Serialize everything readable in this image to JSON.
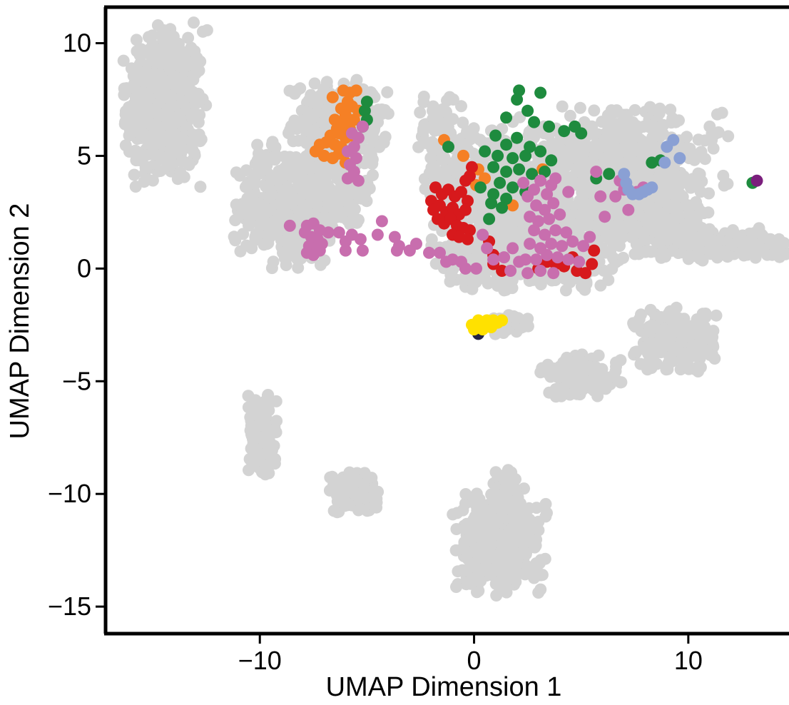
{
  "chart_data": {
    "type": "scatter",
    "title": "",
    "xlabel": "UMAP Dimension 1",
    "ylabel": "UMAP Dimension 2",
    "xlim": [
      -17.2,
      14.7
    ],
    "ylim": [
      -16.2,
      11.6
    ],
    "xticks": [
      {
        "value": -10,
        "label": "−10"
      },
      {
        "value": 0,
        "label": "0"
      },
      {
        "value": 10,
        "label": "10"
      }
    ],
    "yticks": [
      {
        "value": 10,
        "label": "10"
      },
      {
        "value": 5,
        "label": "5"
      },
      {
        "value": 0,
        "label": "0"
      },
      {
        "value": -5,
        "label": "−5"
      },
      {
        "value": -10,
        "label": "−10"
      },
      {
        "value": -15,
        "label": "−15"
      }
    ],
    "grid": false,
    "legend": "none",
    "background_points": {
      "color": "#D3D3D3",
      "clusters": [
        {
          "cx": -14.4,
          "cy": 7.2,
          "sx": 0.9,
          "sy": 1.7,
          "n": 520
        },
        {
          "cx": -6.3,
          "cy": 6.4,
          "sx": 1.1,
          "sy": 0.9,
          "n": 300
        },
        {
          "cx": -8.7,
          "cy": 2.8,
          "sx": 1.2,
          "sy": 1.3,
          "n": 380
        },
        {
          "cx": -6.5,
          "cy": 3.3,
          "sx": 0.9,
          "sy": 1.0,
          "n": 160
        },
        {
          "cx": -1.6,
          "cy": 5.8,
          "sx": 0.6,
          "sy": 1.0,
          "n": 70
        },
        {
          "cx": 1.2,
          "cy": 3.5,
          "sx": 1.6,
          "sy": 1.5,
          "n": 520
        },
        {
          "cx": 3.6,
          "cy": 1.0,
          "sx": 1.5,
          "sy": 0.9,
          "n": 420
        },
        {
          "cx": 6.8,
          "cy": 4.6,
          "sx": 2.3,
          "sy": 1.2,
          "n": 520
        },
        {
          "cx": 8.2,
          "cy": 2.3,
          "sx": 1.4,
          "sy": 0.9,
          "n": 260
        },
        {
          "cx": 11.5,
          "cy": 1.1,
          "sx": 1.6,
          "sy": 0.35,
          "n": 170
        },
        {
          "cx": 0.1,
          "cy": 0.7,
          "sx": 1.0,
          "sy": 0.8,
          "n": 140
        },
        {
          "cx": 9.4,
          "cy": -3.2,
          "sx": 0.9,
          "sy": 0.7,
          "n": 240
        },
        {
          "cx": 5.0,
          "cy": -4.8,
          "sx": 0.9,
          "sy": 0.45,
          "n": 140
        },
        {
          "cx": 1.5,
          "cy": -2.5,
          "sx": 0.5,
          "sy": 0.2,
          "n": 50
        },
        {
          "cx": -9.9,
          "cy": -7.4,
          "sx": 0.35,
          "sy": 0.85,
          "n": 190
        },
        {
          "cx": -5.6,
          "cy": -9.9,
          "sx": 0.55,
          "sy": 0.45,
          "n": 170
        },
        {
          "cx": 1.2,
          "cy": -12.1,
          "sx": 1.0,
          "sy": 1.1,
          "n": 420
        },
        {
          "cx": 1.4,
          "cy": -9.6,
          "sx": 0.25,
          "sy": 0.4,
          "n": 40
        }
      ]
    },
    "series": [
      {
        "color": "#F58025",
        "points": [
          [
            -6.6,
            7.6
          ],
          [
            -6.1,
            7.9
          ],
          [
            -5.8,
            7.8
          ],
          [
            -5.5,
            7.9
          ],
          [
            -5.9,
            7.4
          ],
          [
            -6.2,
            7.1
          ],
          [
            -5.7,
            7.2
          ],
          [
            -5.4,
            7.0
          ],
          [
            -6.5,
            6.6
          ],
          [
            -6.0,
            6.8
          ],
          [
            -5.6,
            6.6
          ],
          [
            -6.4,
            6.2
          ],
          [
            -6.1,
            6.4
          ],
          [
            -5.8,
            6.2
          ],
          [
            -6.7,
            5.9
          ],
          [
            -6.3,
            6.0
          ],
          [
            -6.0,
            5.8
          ],
          [
            -5.7,
            5.9
          ],
          [
            -7.2,
            5.5
          ],
          [
            -6.9,
            5.6
          ],
          [
            -6.5,
            5.5
          ],
          [
            -6.2,
            5.4
          ],
          [
            -7.4,
            5.2
          ],
          [
            -7.0,
            5.0
          ],
          [
            -6.6,
            4.9
          ],
          [
            -6.0,
            4.7
          ],
          [
            -6.3,
            5.1
          ],
          [
            -1.4,
            5.7
          ],
          [
            -0.5,
            5.0
          ],
          [
            0.2,
            4.4
          ],
          [
            0.5,
            4.0
          ],
          [
            0.1,
            3.7
          ],
          [
            1.8,
            2.8
          ],
          [
            3.2,
            4.4
          ]
        ]
      },
      {
        "color": "#1E8B3E",
        "points": [
          [
            -5.0,
            7.4
          ],
          [
            -5.1,
            7.0
          ],
          [
            -5.0,
            6.6
          ],
          [
            -5.2,
            6.3
          ],
          [
            -1.2,
            5.4
          ],
          [
            2.1,
            7.9
          ],
          [
            2.0,
            7.5
          ],
          [
            3.1,
            7.8
          ],
          [
            1.5,
            6.7
          ],
          [
            2.5,
            7.0
          ],
          [
            2.8,
            6.5
          ],
          [
            3.5,
            6.3
          ],
          [
            4.2,
            6.1
          ],
          [
            4.7,
            6.3
          ],
          [
            5.0,
            6.0
          ],
          [
            1.0,
            5.9
          ],
          [
            1.5,
            5.5
          ],
          [
            2.0,
            5.8
          ],
          [
            2.6,
            5.4
          ],
          [
            0.5,
            5.2
          ],
          [
            1.1,
            5.0
          ],
          [
            1.8,
            4.9
          ],
          [
            2.4,
            5.0
          ],
          [
            3.1,
            5.2
          ],
          [
            3.6,
            4.8
          ],
          [
            0.9,
            4.5
          ],
          [
            1.5,
            4.3
          ],
          [
            2.1,
            4.4
          ],
          [
            2.7,
            4.2
          ],
          [
            3.3,
            4.3
          ],
          [
            1.2,
            3.8
          ],
          [
            1.8,
            3.6
          ],
          [
            2.4,
            3.4
          ],
          [
            0.3,
            3.6
          ],
          [
            0.9,
            3.3
          ],
          [
            1.5,
            3.1
          ],
          [
            1.3,
            2.7
          ],
          [
            0.8,
            2.9
          ],
          [
            5.7,
            4.0
          ],
          [
            6.3,
            4.2
          ],
          [
            8.3,
            4.7
          ],
          [
            8.7,
            4.8
          ],
          [
            13.0,
            3.8
          ],
          [
            0.7,
            2.2
          ]
        ]
      },
      {
        "color": "#D7191C",
        "points": [
          [
            -2.0,
            3.0
          ],
          [
            -1.8,
            3.6
          ],
          [
            -1.5,
            3.3
          ],
          [
            -1.2,
            3.5
          ],
          [
            -0.9,
            3.2
          ],
          [
            -0.6,
            3.4
          ],
          [
            -0.3,
            3.0
          ],
          [
            -1.9,
            2.6
          ],
          [
            -1.6,
            2.8
          ],
          [
            -1.3,
            2.5
          ],
          [
            -1.0,
            2.7
          ],
          [
            -0.7,
            2.4
          ],
          [
            -0.4,
            2.6
          ],
          [
            -1.7,
            2.2
          ],
          [
            -1.4,
            2.0
          ],
          [
            -1.1,
            2.2
          ],
          [
            -0.8,
            1.9
          ],
          [
            -0.5,
            1.8
          ],
          [
            -0.2,
            1.7
          ],
          [
            -1.0,
            1.5
          ],
          [
            -0.7,
            1.4
          ],
          [
            -0.3,
            1.3
          ],
          [
            -0.1,
            4.5
          ],
          [
            -0.4,
            3.9
          ],
          [
            -0.2,
            4.1
          ],
          [
            0.7,
            1.2
          ],
          [
            0.9,
            0.6
          ],
          [
            1.3,
            -0.1
          ],
          [
            3.0,
            0.0
          ],
          [
            3.4,
            0.3
          ],
          [
            4.2,
            0.1
          ],
          [
            4.8,
            -0.1
          ],
          [
            5.2,
            -0.2
          ],
          [
            5.5,
            0.2
          ],
          [
            5.6,
            0.8
          ],
          [
            4.6,
            0.5
          ],
          [
            3.8,
            0.2
          ],
          [
            0.9,
            0.2
          ]
        ]
      },
      {
        "color": "#C86EAE",
        "points": [
          [
            -7.8,
            1.9
          ],
          [
            -7.5,
            2.0
          ],
          [
            -7.2,
            1.7
          ],
          [
            -7.9,
            1.6
          ],
          [
            -7.6,
            1.4
          ],
          [
            -7.3,
            1.3
          ],
          [
            -7.7,
            1.0
          ],
          [
            -7.4,
            0.9
          ],
          [
            -7.1,
            1.1
          ],
          [
            -7.8,
            0.7
          ],
          [
            -7.5,
            0.6
          ],
          [
            -7.2,
            0.8
          ],
          [
            -8.6,
            1.9
          ],
          [
            -6.8,
            1.6
          ],
          [
            -6.3,
            1.6
          ],
          [
            -6.0,
            1.2
          ],
          [
            -5.7,
            1.5
          ],
          [
            -5.3,
            1.3
          ],
          [
            -4.5,
            1.5
          ],
          [
            -4.3,
            2.1
          ],
          [
            -3.7,
            1.4
          ],
          [
            -3.5,
            1.0
          ],
          [
            -2.7,
            1.1
          ],
          [
            -3.0,
            0.8
          ],
          [
            -3.6,
            0.8
          ],
          [
            -2.1,
            0.7
          ],
          [
            -1.6,
            0.7
          ],
          [
            -1.0,
            0.4
          ],
          [
            -0.6,
            0.3
          ],
          [
            -1.3,
            0.3
          ],
          [
            -0.4,
            0.0
          ],
          [
            0.1,
            0.0
          ],
          [
            -6.0,
            0.8
          ],
          [
            -5.2,
            0.8
          ],
          [
            -5.7,
            6.0
          ],
          [
            -5.4,
            5.8
          ],
          [
            -5.6,
            5.4
          ],
          [
            -5.9,
            5.2
          ],
          [
            -5.5,
            4.9
          ],
          [
            -5.8,
            4.6
          ],
          [
            -5.6,
            4.3
          ],
          [
            -5.9,
            4.0
          ],
          [
            -5.4,
            3.9
          ],
          [
            -5.2,
            6.3
          ],
          [
            2.3,
            3.8
          ],
          [
            2.8,
            3.5
          ],
          [
            3.1,
            3.9
          ],
          [
            2.5,
            3.2
          ],
          [
            3.4,
            3.3
          ],
          [
            2.9,
            2.8
          ],
          [
            3.3,
            2.6
          ],
          [
            3.7,
            2.9
          ],
          [
            2.6,
            2.3
          ],
          [
            3.0,
            2.1
          ],
          [
            3.5,
            2.2
          ],
          [
            4.0,
            2.4
          ],
          [
            2.8,
            1.7
          ],
          [
            3.3,
            1.5
          ],
          [
            3.8,
            1.7
          ],
          [
            4.3,
            1.6
          ],
          [
            2.6,
            1.1
          ],
          [
            3.1,
            0.9
          ],
          [
            3.6,
            1.1
          ],
          [
            4.1,
            1.0
          ],
          [
            4.6,
            1.2
          ],
          [
            5.1,
            1.0
          ],
          [
            5.4,
            1.4
          ],
          [
            2.4,
            0.4
          ],
          [
            2.9,
            0.4
          ],
          [
            3.4,
            0.6
          ],
          [
            3.9,
            0.5
          ],
          [
            4.4,
            0.4
          ],
          [
            4.9,
            0.3
          ],
          [
            2.5,
            -0.2
          ],
          [
            3.1,
            -0.1
          ],
          [
            3.7,
            -0.2
          ],
          [
            1.4,
            0.5
          ],
          [
            0.9,
            0.4
          ],
          [
            1.8,
            0.9
          ],
          [
            2.1,
            0.3
          ],
          [
            1.7,
            -0.1
          ],
          [
            3.8,
            4.0
          ],
          [
            3.6,
            3.7
          ],
          [
            4.4,
            3.4
          ],
          [
            5.7,
            4.3
          ],
          [
            5.9,
            3.2
          ],
          [
            6.8,
            3.9
          ],
          [
            7.0,
            3.5
          ],
          [
            6.6,
            3.2
          ],
          [
            7.2,
            2.6
          ],
          [
            7.6,
            3.4
          ],
          [
            7.9,
            3.6
          ],
          [
            6.1,
            2.3
          ],
          [
            0.4,
            1.5
          ],
          [
            0.6,
            0.9
          ]
        ]
      },
      {
        "color": "#8AA0D4",
        "points": [
          [
            7.0,
            4.2
          ],
          [
            7.1,
            3.8
          ],
          [
            7.4,
            3.3
          ],
          [
            7.7,
            3.3
          ],
          [
            7.9,
            3.4
          ],
          [
            8.1,
            3.5
          ],
          [
            8.3,
            3.6
          ],
          [
            7.2,
            3.5
          ],
          [
            9.0,
            5.4
          ],
          [
            9.3,
            5.7
          ],
          [
            9.6,
            4.9
          ],
          [
            8.9,
            4.7
          ]
        ]
      },
      {
        "color": "#7B1F7D",
        "points": [
          [
            13.2,
            3.9
          ]
        ]
      },
      {
        "color": "#222244",
        "points": [
          [
            0.2,
            -2.9
          ]
        ]
      },
      {
        "color": "#FFE100",
        "points": [
          [
            -0.1,
            -2.5
          ],
          [
            0.1,
            -2.6
          ],
          [
            0.3,
            -2.5
          ],
          [
            0.5,
            -2.4
          ],
          [
            0.7,
            -2.5
          ],
          [
            0.9,
            -2.3
          ],
          [
            1.1,
            -2.4
          ],
          [
            1.3,
            -2.3
          ],
          [
            0.0,
            -2.7
          ],
          [
            0.4,
            -2.7
          ],
          [
            0.8,
            -2.6
          ],
          [
            0.6,
            -2.3
          ],
          [
            0.2,
            -2.3
          ]
        ]
      }
    ]
  }
}
